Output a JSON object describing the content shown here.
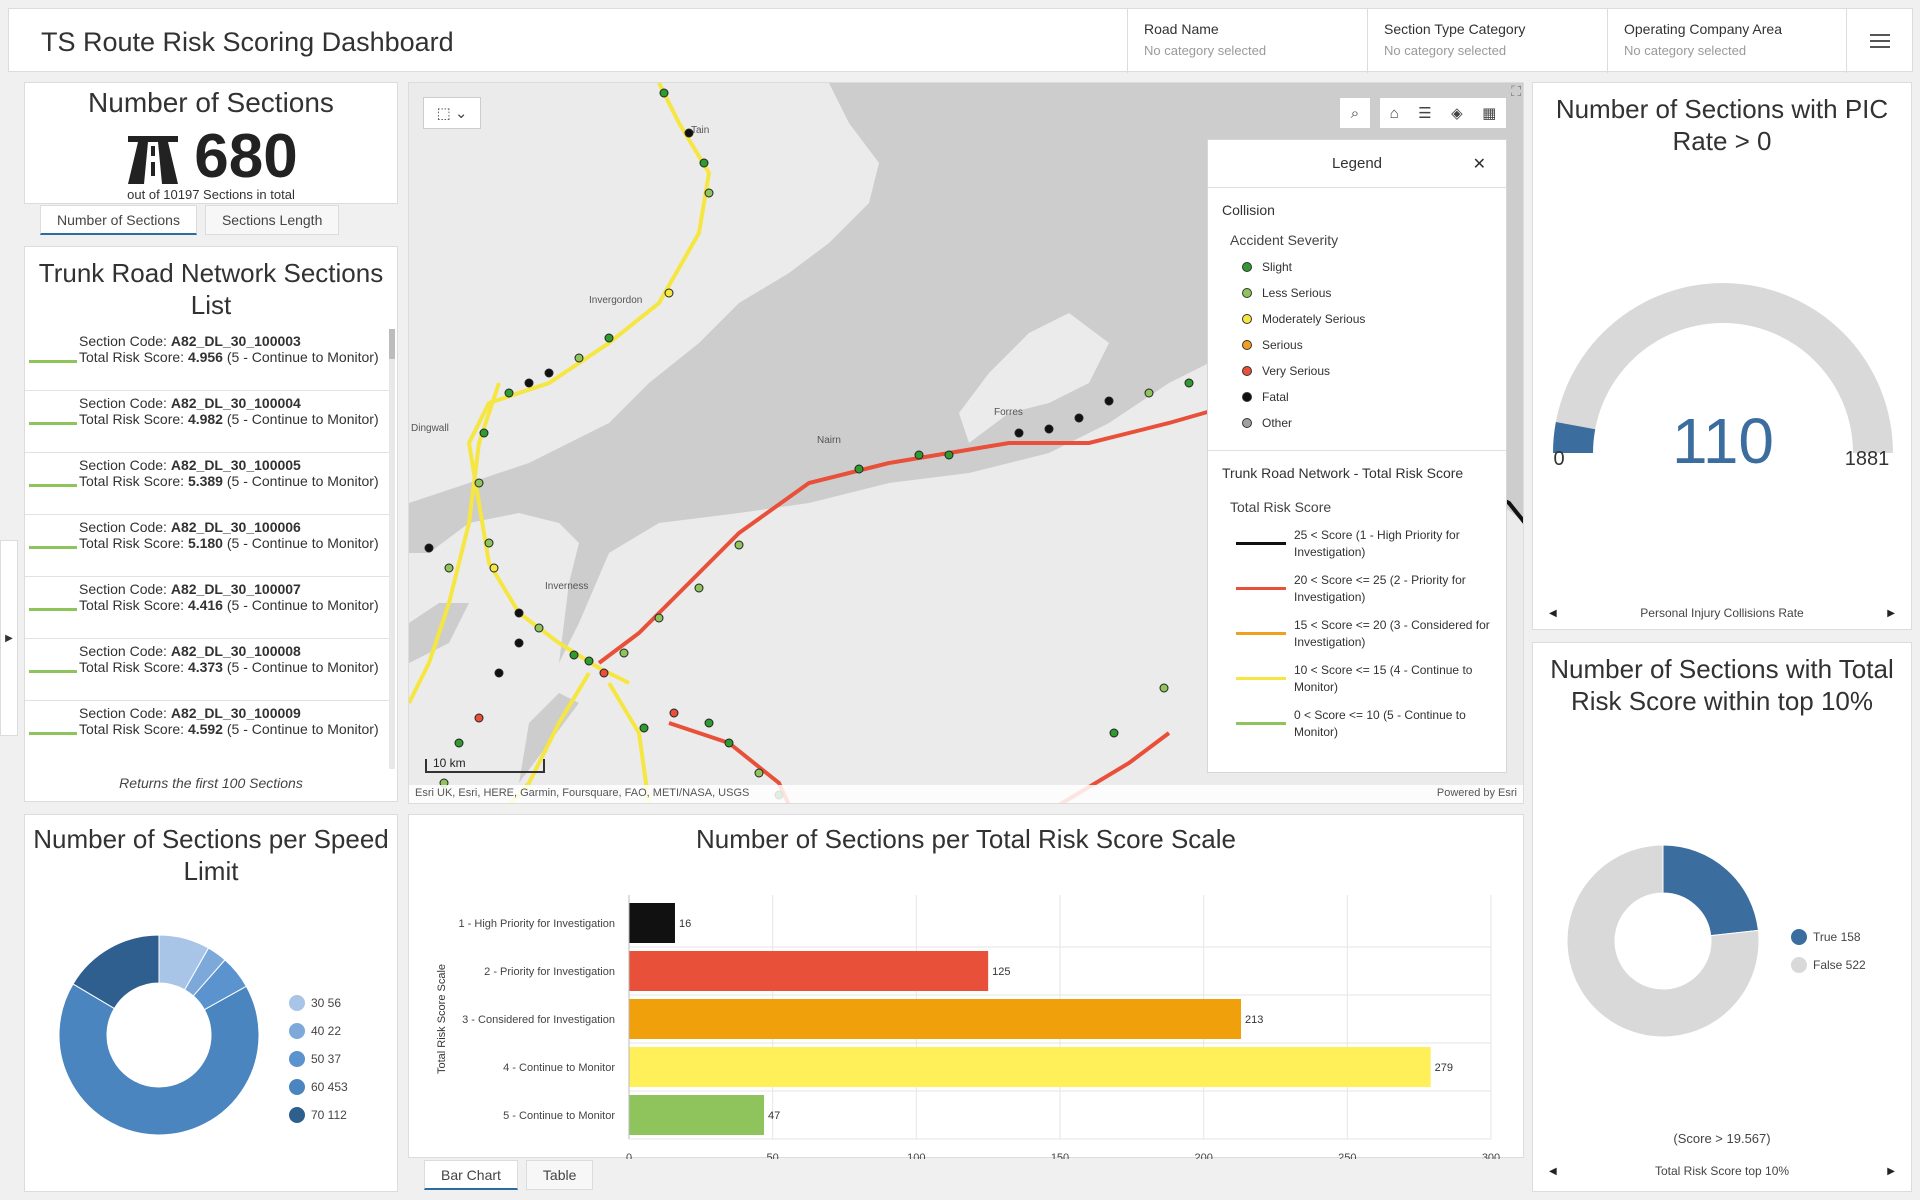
{
  "header": {
    "title": "TS Route Risk Scoring Dashboard",
    "filters": [
      {
        "label": "Road Name",
        "value": "No category selected"
      },
      {
        "label": "Section Type Category",
        "value": "No category selected"
      },
      {
        "label": "Operating Company Area",
        "value": "No category selected"
      }
    ]
  },
  "sections_count": {
    "title": "Number of Sections",
    "value": "680",
    "subtitle": "out of 10197 Sections in total",
    "tabs": [
      "Number of Sections",
      "Sections Length"
    ]
  },
  "sections_list": {
    "title": "Trunk Road Network Sections List",
    "items": [
      {
        "code_label": "Section Code: ",
        "code": "A82_DL_30_100003",
        "score_label": "Total Risk Score: ",
        "score": "4.956",
        "suffix": " (5 - Continue to Monitor)"
      },
      {
        "code_label": "Section Code: ",
        "code": "A82_DL_30_100004",
        "score_label": "Total Risk Score: ",
        "score": "4.982",
        "suffix": " (5 - Continue to Monitor)"
      },
      {
        "code_label": "Section Code: ",
        "code": "A82_DL_30_100005",
        "score_label": "Total Risk Score: ",
        "score": "5.389",
        "suffix": " (5 - Continue to Monitor)"
      },
      {
        "code_label": "Section Code: ",
        "code": "A82_DL_30_100006",
        "score_label": "Total Risk Score: ",
        "score": "5.180",
        "suffix": " (5 - Continue to Monitor)"
      },
      {
        "code_label": "Section Code: ",
        "code": "A82_DL_30_100007",
        "score_label": "Total Risk Score: ",
        "score": "4.416",
        "suffix": " (5 - Continue to Monitor)"
      },
      {
        "code_label": "Section Code: ",
        "code": "A82_DL_30_100008",
        "score_label": "Total Risk Score: ",
        "score": "4.373",
        "suffix": " (5 - Continue to Monitor)"
      },
      {
        "code_label": "Section Code: ",
        "code": "A82_DL_30_100009",
        "score_label": "Total Risk Score: ",
        "score": "4.592",
        "suffix": " (5 - Continue to Monitor)"
      }
    ],
    "footer": "Returns the first 100 Sections"
  },
  "map": {
    "places": [
      "Tain",
      "Invergordon",
      "Dingwall",
      "Nairn",
      "Forres",
      "Inverness"
    ],
    "scale_label": "10 km",
    "attribution": "Esri UK, Esri, HERE, Garmin, Foursquare, FAO, METI/NASA, USGS",
    "powered": "Powered by Esri",
    "legend": {
      "title": "Legend",
      "layer1": "Collision",
      "layer1_field": "Accident Severity",
      "severity": [
        {
          "label": "Slight",
          "color": "#2f9a2f"
        },
        {
          "label": "Less Serious",
          "color": "#8fc45c"
        },
        {
          "label": "Moderately Serious",
          "color": "#f5e642"
        },
        {
          "label": "Serious",
          "color": "#f0a020"
        },
        {
          "label": "Very Serious",
          "color": "#e8503a"
        },
        {
          "label": "Fatal",
          "color": "#111111"
        },
        {
          "label": "Other",
          "color": "#a0a0a0"
        }
      ],
      "layer2": "Trunk Road Network - Total Risk Score",
      "layer2_field": "Total Risk Score",
      "score_classes": [
        {
          "label": "25 < Score (1 - High Priority for Investigation)",
          "color": "#111111"
        },
        {
          "label": "20 < Score <= 25 (2 - Priority for Investigation)",
          "color": "#e8503a"
        },
        {
          "label": "15 < Score <= 20 (3 - Considered for Investigation)",
          "color": "#f0a020"
        },
        {
          "label": "10 < Score <= 15 (4 - Continue to Monitor)",
          "color": "#f5e642"
        },
        {
          "label": "0 < Score <= 10 (5 - Continue to Monitor)",
          "color": "#8fc45c"
        }
      ]
    }
  },
  "gauge": {
    "title": "Number of Sections with PIC Rate > 0",
    "value": 110,
    "min": 0,
    "max": 1881,
    "nav_label": "Personal Injury Collisions Rate"
  },
  "top10": {
    "title": "Number of Sections with Total Risk Score within top 10%",
    "note": "(Score > 19.567)",
    "nav_label": "Total Risk Score top 10%",
    "slices": [
      {
        "label": "True",
        "value": 158,
        "color": "#3b6e9e"
      },
      {
        "label": "False",
        "value": 522,
        "color": "#d9d9d9"
      }
    ]
  },
  "speed": {
    "title": "Number of Sections per Speed Limit",
    "slices": [
      {
        "label": "30",
        "value": 56,
        "color": "#a8c4e6"
      },
      {
        "label": "40",
        "value": 22,
        "color": "#7ca8da"
      },
      {
        "label": "50",
        "value": 37,
        "color": "#5b93cf"
      },
      {
        "label": "60",
        "value": 453,
        "color": "#4a85c0"
      },
      {
        "label": "70",
        "value": 112,
        "color": "#2f5f8f"
      }
    ]
  },
  "chart_data": {
    "type": "bar",
    "title": "Number of Sections per Total Risk Score Scale",
    "ylabel": "Total Risk Score Scale",
    "categories": [
      "1 - High Priority for Investigation",
      "2 - Priority for Investigation",
      "3 - Considered for Investigation",
      "4 - Continue to Monitor",
      "5 - Continue to Monitor"
    ],
    "values": [
      16,
      125,
      213,
      279,
      47
    ],
    "colors": [
      "#111111",
      "#e8503a",
      "#f0a00a",
      "#fff05a",
      "#8fc45c"
    ],
    "xlim": [
      0,
      300
    ],
    "ticks": [
      0,
      50,
      100,
      150,
      200,
      250,
      300
    ],
    "tabs": [
      "Bar Chart",
      "Table"
    ]
  }
}
